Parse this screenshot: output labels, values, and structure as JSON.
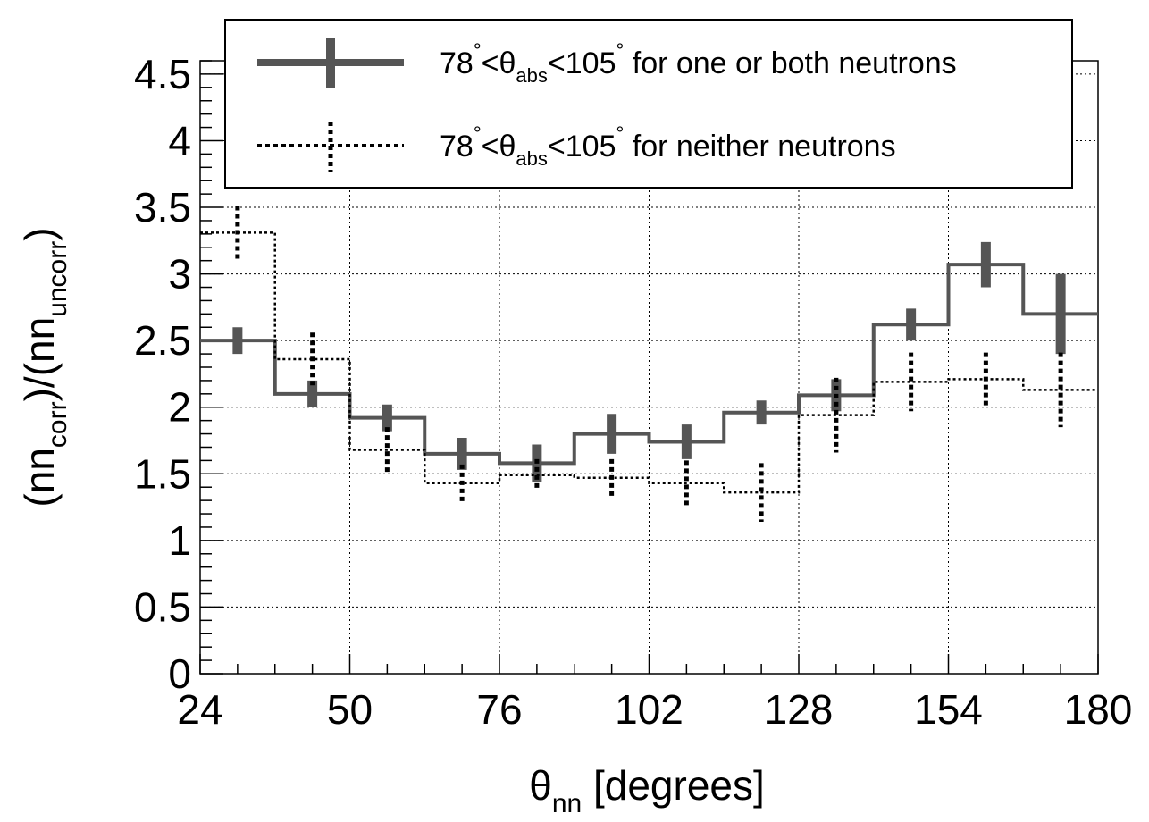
{
  "chart_data": {
    "type": "line",
    "xlabel": {
      "symbol": "θ",
      "sub": "nn",
      "rest": " [degrees]"
    },
    "ylabel": {
      "open": "(nn",
      "sub1": "corr",
      "mid": ")/(nn",
      "sub2": "uncorr",
      "close": ")"
    },
    "xlim": [
      24,
      180
    ],
    "ylim": [
      0,
      4.6
    ],
    "x_ticks": [
      24,
      50,
      76,
      102,
      128,
      154,
      180
    ],
    "y_ticks": [
      0,
      0.5,
      1,
      1.5,
      2,
      2.5,
      3,
      3.5,
      4,
      4.5
    ],
    "grid": true,
    "legend_position": "top",
    "bin_edges": [
      24,
      37,
      50,
      63,
      76,
      89,
      102,
      115,
      128,
      141,
      154,
      167,
      180
    ],
    "series": [
      {
        "name": {
          "pre": "78",
          "deg": "°",
          "theta": "<θ",
          "sub": "abs",
          "post": "<105",
          "tail": " for one or both neutrons"
        },
        "style": "solid",
        "color": "#555555",
        "x": [
          30.5,
          43.5,
          56.5,
          69.5,
          82.5,
          95.5,
          108.5,
          121.5,
          134.5,
          147.5,
          160.5,
          173.5
        ],
        "values": [
          2.5,
          2.1,
          1.92,
          1.65,
          1.58,
          1.8,
          1.74,
          1.96,
          2.09,
          2.62,
          3.07,
          2.7
        ],
        "errors": [
          0.1,
          0.1,
          0.1,
          0.12,
          0.14,
          0.15,
          0.13,
          0.09,
          0.12,
          0.12,
          0.17,
          0.3
        ]
      },
      {
        "name": {
          "pre": "78",
          "deg": "°",
          "theta": "<θ",
          "sub": "abs",
          "post": "<105",
          "tail": " for neither neutrons"
        },
        "style": "dotted",
        "color": "#000000",
        "x": [
          30.5,
          43.5,
          56.5,
          69.5,
          82.5,
          95.5,
          108.5,
          121.5,
          134.5,
          147.5,
          160.5,
          173.5
        ],
        "values": [
          3.31,
          2.36,
          1.68,
          1.43,
          1.49,
          1.47,
          1.43,
          1.36,
          1.94,
          2.19,
          2.21,
          2.13
        ],
        "errors": [
          0.2,
          0.2,
          0.17,
          0.14,
          0.12,
          0.14,
          0.17,
          0.22,
          0.28,
          0.22,
          0.2,
          0.28
        ]
      }
    ]
  }
}
